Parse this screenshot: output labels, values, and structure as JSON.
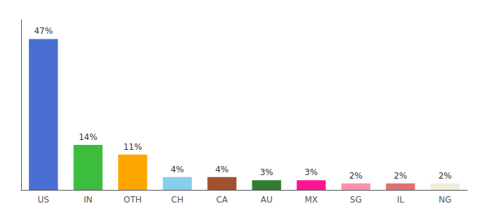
{
  "chart_data": {
    "type": "bar",
    "categories": [
      "US",
      "IN",
      "OTH",
      "CH",
      "CA",
      "AU",
      "MX",
      "SG",
      "IL",
      "NG"
    ],
    "values": [
      47,
      14,
      11,
      4,
      4,
      3,
      3,
      2,
      2,
      2
    ],
    "value_labels": [
      "47%",
      "14%",
      "11%",
      "4%",
      "4%",
      "3%",
      "3%",
      "2%",
      "2%",
      "2%"
    ],
    "colors": [
      "#4A6FD4",
      "#3DBD3D",
      "#FFA500",
      "#87CEEB",
      "#A0522D",
      "#2E7D32",
      "#FF1493",
      "#FF8FAB",
      "#E07070",
      "#F0EDD8"
    ],
    "data_labels": true,
    "ylim": [
      0,
      53
    ],
    "yticks": [],
    "tick_labels": "x",
    "grid": false
  }
}
